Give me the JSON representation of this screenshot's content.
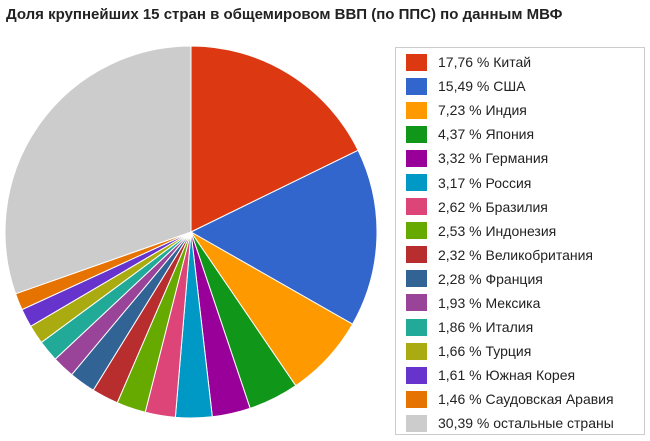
{
  "chart_data": {
    "type": "pie",
    "title": "Доля крупнейших 15 стран в общемировом ВВП (по ППС) по данным МВФ",
    "legend_position": "right",
    "slices": [
      {
        "value": 17.76,
        "label": "17,76 % Китай",
        "color": "#dc3912"
      },
      {
        "value": 15.49,
        "label": "15,49 % США",
        "color": "#3366cc"
      },
      {
        "value": 7.23,
        "label": "7,23 % Индия",
        "color": "#ff9900"
      },
      {
        "value": 4.37,
        "label": "4,37 % Япония",
        "color": "#109618"
      },
      {
        "value": 3.32,
        "label": "3,32 % Германия",
        "color": "#990099"
      },
      {
        "value": 3.17,
        "label": "3,17 % Россия",
        "color": "#0099c6"
      },
      {
        "value": 2.62,
        "label": "2,62 % Бразилия",
        "color": "#dd4477"
      },
      {
        "value": 2.53,
        "label": "2,53 % Индонезия",
        "color": "#66aa00"
      },
      {
        "value": 2.32,
        "label": "2,32 % Великобритания",
        "color": "#b82e2e"
      },
      {
        "value": 2.28,
        "label": "2,28 % Франция",
        "color": "#316395"
      },
      {
        "value": 1.93,
        "label": "1,93 % Мексика",
        "color": "#994499"
      },
      {
        "value": 1.86,
        "label": "1,86 % Италия",
        "color": "#22aa99"
      },
      {
        "value": 1.66,
        "label": "1,66 % Турция",
        "color": "#aaaa11"
      },
      {
        "value": 1.61,
        "label": "1,61 % Южная Корея",
        "color": "#6633cc"
      },
      {
        "value": 1.46,
        "label": "1,46 % Саудовская Аравия",
        "color": "#e67300"
      },
      {
        "value": 30.39,
        "label": "30,39 % остальные страны",
        "color": "#cccccc"
      }
    ]
  }
}
